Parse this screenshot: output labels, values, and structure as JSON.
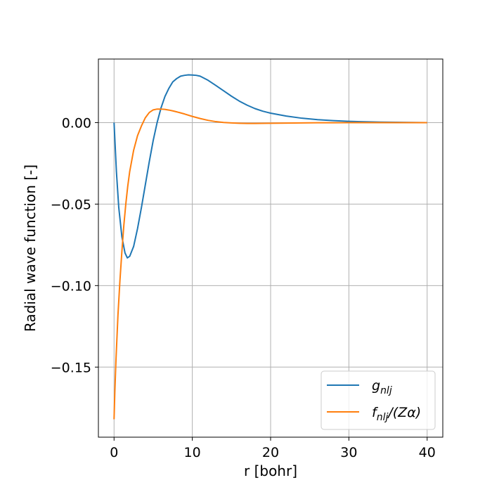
{
  "chart_data": {
    "type": "line",
    "title": "",
    "xlabel": "r [bohr]",
    "ylabel": "Radial wave function [-]",
    "xlim": [
      -2,
      42
    ],
    "ylim": [
      -0.193,
      0.039
    ],
    "xticks": [
      {
        "value": 0,
        "label": "0"
      },
      {
        "value": 10,
        "label": "10"
      },
      {
        "value": 20,
        "label": "20"
      },
      {
        "value": 30,
        "label": "30"
      },
      {
        "value": 40,
        "label": "40"
      }
    ],
    "yticks": [
      {
        "value": 0.0,
        "label": "0.00"
      },
      {
        "value": -0.05,
        "label": "−0.05"
      },
      {
        "value": -0.1,
        "label": "−0.10"
      },
      {
        "value": -0.15,
        "label": "−0.15"
      }
    ],
    "grid": true,
    "legend_position": "lower-right",
    "series": [
      {
        "name": "g_nlj",
        "legend_label": {
          "main": "g",
          "sub": "nlj",
          "rest": ""
        },
        "color": "#1f77b4",
        "x": [
          0,
          0.3,
          0.6,
          1.0,
          1.4,
          1.7,
          2.0,
          2.5,
          3.0,
          3.5,
          4.0,
          4.5,
          5.0,
          5.5,
          6.0,
          6.5,
          7.0,
          7.5,
          8.0,
          8.5,
          9.0,
          9.5,
          10.0,
          10.5,
          11.0,
          12.0,
          13.0,
          14.0,
          15.0,
          16.0,
          17.0,
          18.0,
          19.0,
          20.0,
          22.0,
          24.0,
          26.0,
          28.0,
          30.0,
          32.0,
          34.0,
          36.0,
          38.0,
          40.0
        ],
        "y": [
          0.0,
          -0.03,
          -0.052,
          -0.07,
          -0.08,
          -0.083,
          -0.082,
          -0.076,
          -0.065,
          -0.052,
          -0.038,
          -0.024,
          -0.011,
          0.0,
          0.009,
          0.016,
          0.021,
          0.025,
          0.027,
          0.0285,
          0.029,
          0.0293,
          0.0292,
          0.029,
          0.0285,
          0.026,
          0.0228,
          0.0195,
          0.0162,
          0.0132,
          0.0107,
          0.0086,
          0.007,
          0.0058,
          0.004,
          0.0027,
          0.0018,
          0.0012,
          0.0008,
          0.0005,
          0.0003,
          0.0002,
          0.0001,
          0.0
        ]
      },
      {
        "name": "f_nlj/(Zα)",
        "legend_label": {
          "main": "f",
          "sub": "nlj",
          "rest": "/(Zα)"
        },
        "color": "#ff7f0e",
        "x": [
          0,
          0.1,
          0.25,
          0.5,
          0.75,
          1.0,
          1.25,
          1.5,
          1.75,
          2.0,
          2.5,
          3.0,
          3.5,
          4.0,
          4.5,
          5.0,
          5.5,
          6.0,
          6.5,
          7.0,
          7.5,
          8.0,
          9.0,
          10.0,
          11.0,
          12.0,
          13.0,
          14.0,
          15.0,
          16.0,
          17.0,
          18.0,
          20.0,
          22.0,
          24.0,
          26.0,
          28.0,
          30.0,
          34.0,
          40.0
        ],
        "y": [
          -0.182,
          -0.165,
          -0.145,
          -0.118,
          -0.097,
          -0.079,
          -0.063,
          -0.05,
          -0.039,
          -0.03,
          -0.017,
          -0.008,
          -0.002,
          0.003,
          0.0062,
          0.0078,
          0.0083,
          0.0083,
          0.0081,
          0.0077,
          0.0072,
          0.0066,
          0.0053,
          0.0038,
          0.0025,
          0.0014,
          0.0006,
          0.0001,
          -0.0002,
          -0.0004,
          -0.0005,
          -0.0005,
          -0.0004,
          -0.0003,
          -0.0002,
          -0.0001,
          -0.0001,
          0.0,
          0.0,
          0.0
        ]
      }
    ]
  }
}
